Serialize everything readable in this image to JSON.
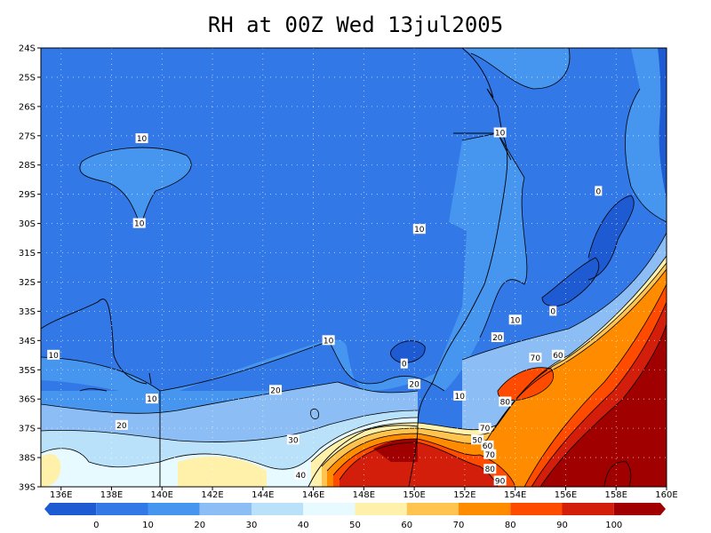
{
  "title": "RH at 00Z Wed 13jul2005",
  "map": {
    "lat_labels": [
      "24S",
      "25S",
      "26S",
      "27S",
      "28S",
      "29S",
      "30S",
      "31S",
      "32S",
      "33S",
      "34S",
      "35S",
      "36S",
      "37S",
      "38S",
      "39S"
    ],
    "lon_labels": [
      "136E",
      "138E",
      "140E",
      "142E",
      "144E",
      "146E",
      "148E",
      "150E",
      "152E",
      "154E",
      "156E",
      "158E",
      "160E"
    ],
    "lat_range": [
      -39,
      -24
    ],
    "lon_range": [
      135.2,
      160
    ]
  },
  "contour_labels": [
    {
      "text": "10",
      "lon": 139.2,
      "lat": -27.1
    },
    {
      "text": "10",
      "lon": 139.1,
      "lat": -30.0
    },
    {
      "text": "10",
      "lon": 150.2,
      "lat": -30.2
    },
    {
      "text": "10",
      "lon": 153.4,
      "lat": -26.9
    },
    {
      "text": "0",
      "lon": 157.3,
      "lat": -28.9
    },
    {
      "text": "10",
      "lon": 135.7,
      "lat": -34.5
    },
    {
      "text": "10",
      "lon": 146.6,
      "lat": -34.0
    },
    {
      "text": "0",
      "lon": 149.6,
      "lat": -34.8
    },
    {
      "text": "10",
      "lon": 139.6,
      "lat": -36.0
    },
    {
      "text": "20",
      "lon": 144.5,
      "lat": -35.7
    },
    {
      "text": "20",
      "lon": 150.0,
      "lat": -35.5
    },
    {
      "text": "10",
      "lon": 151.8,
      "lat": -35.9
    },
    {
      "text": "20",
      "lon": 138.4,
      "lat": -36.9
    },
    {
      "text": "30",
      "lon": 145.2,
      "lat": -37.4
    },
    {
      "text": "40",
      "lon": 145.5,
      "lat": -38.6
    },
    {
      "text": "20",
      "lon": 153.3,
      "lat": -33.9
    },
    {
      "text": "10",
      "lon": 154.0,
      "lat": -33.3
    },
    {
      "text": "0",
      "lon": 155.5,
      "lat": -33.0
    },
    {
      "text": "70",
      "lon": 154.8,
      "lat": -34.6
    },
    {
      "text": "60",
      "lon": 155.7,
      "lat": -34.5
    },
    {
      "text": "80",
      "lon": 153.6,
      "lat": -36.1
    },
    {
      "text": "70",
      "lon": 152.8,
      "lat": -37.0
    },
    {
      "text": "50",
      "lon": 152.5,
      "lat": -37.4
    },
    {
      "text": "60",
      "lon": 152.9,
      "lat": -37.6
    },
    {
      "text": "70",
      "lon": 153.0,
      "lat": -37.9
    },
    {
      "text": "80",
      "lon": 153.0,
      "lat": -38.4
    },
    {
      "text": "90",
      "lon": 153.4,
      "lat": -38.8
    }
  ],
  "colorbar": {
    "labels": [
      "0",
      "10",
      "20",
      "30",
      "40",
      "50",
      "60",
      "70",
      "80",
      "90",
      "100"
    ],
    "colors": [
      "#1e5ad2",
      "#3278e6",
      "#4696f0",
      "#8cbef5",
      "#b9e1fa",
      "#e6faff",
      "#fff0aa",
      "#ffc350",
      "#ff8c00",
      "#ff4b00",
      "#d21e0a",
      "#a00000"
    ]
  }
}
